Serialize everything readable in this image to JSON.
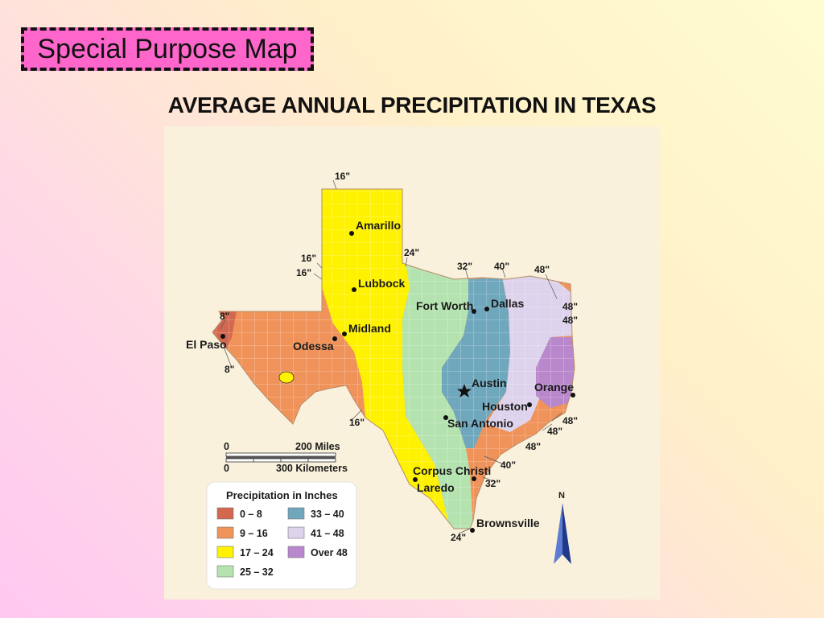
{
  "slide": {
    "badge_text": "Special Purpose Map",
    "title": "AVERAGE ANNUAL PRECIPITATION IN TEXAS"
  },
  "cities": {
    "amarillo": "Amarillo",
    "lubbock": "Lubbock",
    "midland": "Midland",
    "odessa": "Odessa",
    "el_paso": "El Paso",
    "fort_worth": "Fort Worth",
    "dallas": "Dallas",
    "austin": "Austin",
    "houston": "Houston",
    "san_antonio": "San Antonio",
    "orange": "Orange",
    "corpus_christi": "Corpus Christi",
    "laredo": "Laredo",
    "brownsville": "Brownsville"
  },
  "isohyets": {
    "l16_top": "16\"",
    "l16_a": "16\"",
    "l16_b": "16\"",
    "l16_bottom": "16\"",
    "l24_top": "24\"",
    "l24_bottom": "24\"",
    "l32_top": "32\"",
    "l32_bottom": "32\"",
    "l40_top": "40\"",
    "l40_bottom": "40\"",
    "l48_top": "48\"",
    "l48_r1": "48\"",
    "l48_r2": "48\"",
    "l48_r3": "48\"",
    "l48_r4": "48\"",
    "l48_r5": "48\"",
    "l8_top": "8\"",
    "l8_bottom": "8\""
  },
  "scale": {
    "miles_zero": "0",
    "miles_label": "200 Miles",
    "km_zero": "0",
    "km_label": "300 Kilometers"
  },
  "north_label": "N",
  "legend": {
    "title": "Precipitation in Inches",
    "items": [
      {
        "label": "0 – 8",
        "color": "#d4674f"
      },
      {
        "label": "9 – 16",
        "color": "#f0935a"
      },
      {
        "label": "17 – 24",
        "color": "#fff200"
      },
      {
        "label": "25 – 32",
        "color": "#b5e3b0"
      },
      {
        "label": "33 – 40",
        "color": "#6fa7bd"
      },
      {
        "label": "41 – 48",
        "color": "#ddd3ec"
      },
      {
        "label": "Over 48",
        "color": "#b887cc"
      }
    ]
  }
}
